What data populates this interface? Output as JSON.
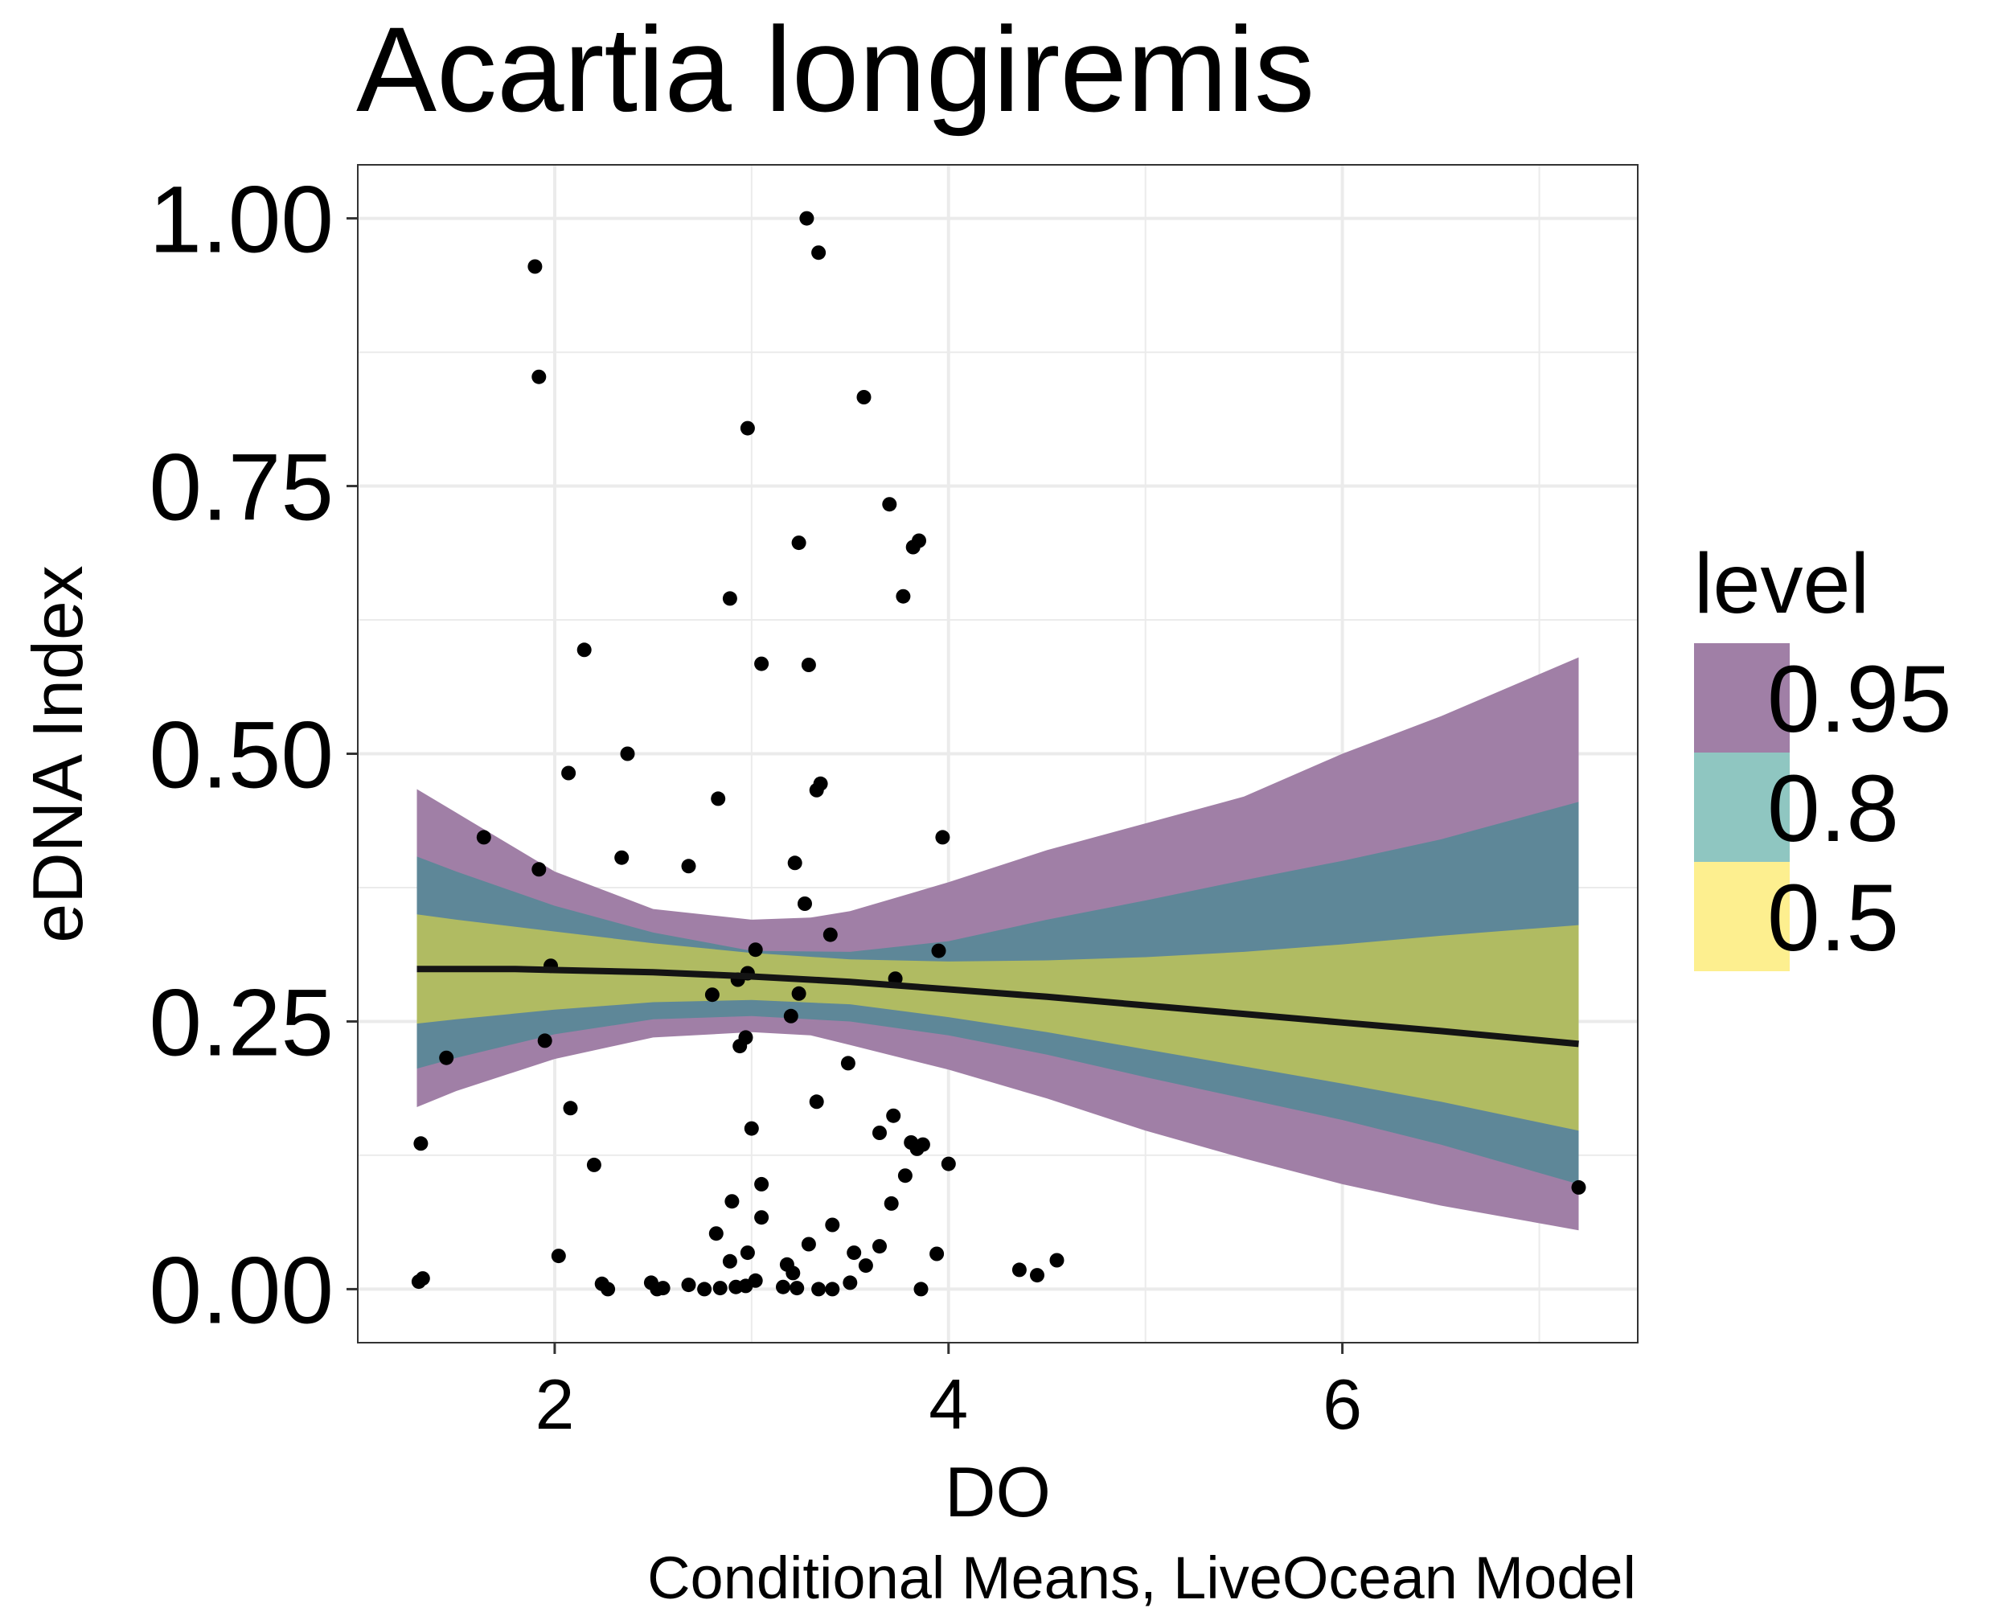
{
  "chart_data": {
    "type": "scatter",
    "title": "Acartia longiremis",
    "xlabel": "DO",
    "ylabel": "eDNA Index",
    "caption": "Conditional Means, LiveOcean Model",
    "xlim": [
      1.0,
      7.5
    ],
    "ylim": [
      -0.05,
      1.05
    ],
    "x_ticks": [
      2,
      4,
      6
    ],
    "x_tick_labels": [
      "2",
      "4",
      "6"
    ],
    "y_ticks": [
      0,
      0.25,
      0.5,
      0.75,
      1.0
    ],
    "y_tick_labels": [
      "0.00",
      "0.25",
      "0.50",
      "0.75",
      "1.00"
    ],
    "grid": true,
    "legend": {
      "title": "level",
      "position": "right",
      "entries": [
        {
          "label": "0.95",
          "color": "#a07fa6"
        },
        {
          "label": "0.8",
          "color": "#8fc6c1"
        },
        {
          "label": "0.5",
          "color": "#fdef8f"
        }
      ]
    },
    "colors": {
      "band_95": "#a07fa6",
      "band_80": "#5e8798",
      "band_50": "#b0bb62",
      "mean_line": "#141414",
      "points": "#000000",
      "grid": "#ebebeb",
      "panel_border": "#333333"
    },
    "mean_line": {
      "x": [
        1.3,
        1.5,
        1.8,
        2.0,
        2.5,
        3.0,
        3.5,
        4.0,
        4.5,
        5.0,
        5.5,
        6.0,
        6.5,
        7.2
      ],
      "y": [
        0.299,
        0.299,
        0.299,
        0.298,
        0.296,
        0.292,
        0.287,
        0.28,
        0.273,
        0.265,
        0.257,
        0.249,
        0.241,
        0.229
      ]
    },
    "bands": [
      {
        "level": "0.95",
        "x": [
          1.3,
          1.5,
          2.0,
          2.5,
          3.0,
          3.3,
          3.5,
          4.0,
          4.5,
          5.0,
          5.5,
          6.0,
          6.5,
          7.2
        ],
        "lower": [
          0.17,
          0.185,
          0.215,
          0.235,
          0.24,
          0.237,
          0.228,
          0.205,
          0.178,
          0.148,
          0.122,
          0.098,
          0.078,
          0.055
        ],
        "upper": [
          0.467,
          0.445,
          0.39,
          0.355,
          0.345,
          0.347,
          0.353,
          0.38,
          0.41,
          0.435,
          0.46,
          0.5,
          0.535,
          0.59
        ]
      },
      {
        "level": "0.8",
        "x": [
          1.3,
          1.5,
          2.0,
          2.5,
          3.0,
          3.5,
          4.0,
          4.5,
          5.0,
          5.5,
          6.0,
          6.5,
          7.2
        ],
        "lower": [
          0.206,
          0.216,
          0.238,
          0.252,
          0.255,
          0.25,
          0.237,
          0.219,
          0.198,
          0.178,
          0.158,
          0.135,
          0.098
        ],
        "upper": [
          0.404,
          0.39,
          0.358,
          0.333,
          0.316,
          0.315,
          0.325,
          0.345,
          0.363,
          0.382,
          0.4,
          0.42,
          0.455
        ]
      },
      {
        "level": "0.5",
        "x": [
          1.3,
          1.5,
          2.0,
          2.5,
          3.0,
          3.5,
          4.0,
          4.5,
          5.0,
          5.5,
          6.0,
          6.5,
          7.2
        ],
        "lower": [
          0.248,
          0.252,
          0.261,
          0.268,
          0.27,
          0.266,
          0.254,
          0.24,
          0.224,
          0.208,
          0.192,
          0.175,
          0.148
        ],
        "upper": [
          0.35,
          0.345,
          0.334,
          0.323,
          0.314,
          0.308,
          0.306,
          0.307,
          0.31,
          0.315,
          0.322,
          0.33,
          0.34
        ]
      }
    ],
    "points": [
      [
        3.28,
        1.0
      ],
      [
        3.34,
        0.968
      ],
      [
        1.9,
        0.955
      ],
      [
        1.92,
        0.852
      ],
      [
        3.57,
        0.833
      ],
      [
        2.98,
        0.804
      ],
      [
        3.7,
        0.733
      ],
      [
        3.24,
        0.697
      ],
      [
        3.85,
        0.699
      ],
      [
        3.82,
        0.693
      ],
      [
        2.89,
        0.645
      ],
      [
        3.77,
        0.647
      ],
      [
        2.15,
        0.597
      ],
      [
        3.05,
        0.584
      ],
      [
        3.29,
        0.583
      ],
      [
        2.37,
        0.5
      ],
      [
        2.07,
        0.482
      ],
      [
        3.35,
        0.472
      ],
      [
        3.33,
        0.466
      ],
      [
        2.83,
        0.458
      ],
      [
        1.64,
        0.422
      ],
      [
        3.97,
        0.422
      ],
      [
        2.34,
        0.403
      ],
      [
        3.22,
        0.398
      ],
      [
        2.68,
        0.395
      ],
      [
        1.92,
        0.392
      ],
      [
        3.27,
        0.36
      ],
      [
        3.4,
        0.331
      ],
      [
        3.95,
        0.316
      ],
      [
        3.02,
        0.317
      ],
      [
        2.98,
        0.295
      ],
      [
        2.93,
        0.289
      ],
      [
        3.73,
        0.29
      ],
      [
        3.24,
        0.276
      ],
      [
        2.8,
        0.275
      ],
      [
        1.98,
        0.302
      ],
      [
        3.2,
        0.255
      ],
      [
        2.97,
        0.235
      ],
      [
        1.95,
        0.232
      ],
      [
        2.94,
        0.227
      ],
      [
        1.45,
        0.216
      ],
      [
        3.49,
        0.211
      ],
      [
        3.33,
        0.175
      ],
      [
        2.08,
        0.169
      ],
      [
        3.72,
        0.162
      ],
      [
        3.0,
        0.15
      ],
      [
        3.65,
        0.146
      ],
      [
        3.81,
        0.137
      ],
      [
        3.87,
        0.135
      ],
      [
        1.32,
        0.136
      ],
      [
        3.84,
        0.131
      ],
      [
        2.2,
        0.116
      ],
      [
        4.0,
        0.117
      ],
      [
        3.78,
        0.106
      ],
      [
        3.05,
        0.098
      ],
      [
        7.2,
        0.095
      ],
      [
        2.9,
        0.082
      ],
      [
        3.71,
        0.08
      ],
      [
        3.05,
        0.067
      ],
      [
        3.41,
        0.06
      ],
      [
        2.82,
        0.052
      ],
      [
        3.65,
        0.04
      ],
      [
        3.29,
        0.042
      ],
      [
        3.52,
        0.034
      ],
      [
        2.98,
        0.034
      ],
      [
        3.94,
        0.033
      ],
      [
        2.02,
        0.031
      ],
      [
        4.55,
        0.027
      ],
      [
        2.89,
        0.026
      ],
      [
        3.18,
        0.023
      ],
      [
        3.58,
        0.022
      ],
      [
        4.36,
        0.018
      ],
      [
        3.21,
        0.015
      ],
      [
        4.45,
        0.013
      ],
      [
        1.33,
        0.01
      ],
      [
        1.31,
        0.007
      ],
      [
        3.5,
        0.006
      ],
      [
        2.24,
        0.005
      ],
      [
        2.49,
        0.006
      ],
      [
        2.68,
        0.004
      ],
      [
        3.02,
        0.008
      ],
      [
        2.97,
        0.003
      ],
      [
        2.92,
        0.002
      ],
      [
        3.16,
        0.002
      ],
      [
        2.55,
        0.001
      ],
      [
        3.23,
        0.001
      ],
      [
        2.27,
        0.0
      ],
      [
        2.52,
        0.0
      ],
      [
        2.76,
        0.0
      ],
      [
        2.84,
        0.001
      ],
      [
        3.34,
        0.0
      ],
      [
        3.41,
        0.0
      ],
      [
        3.86,
        0.0
      ]
    ]
  }
}
